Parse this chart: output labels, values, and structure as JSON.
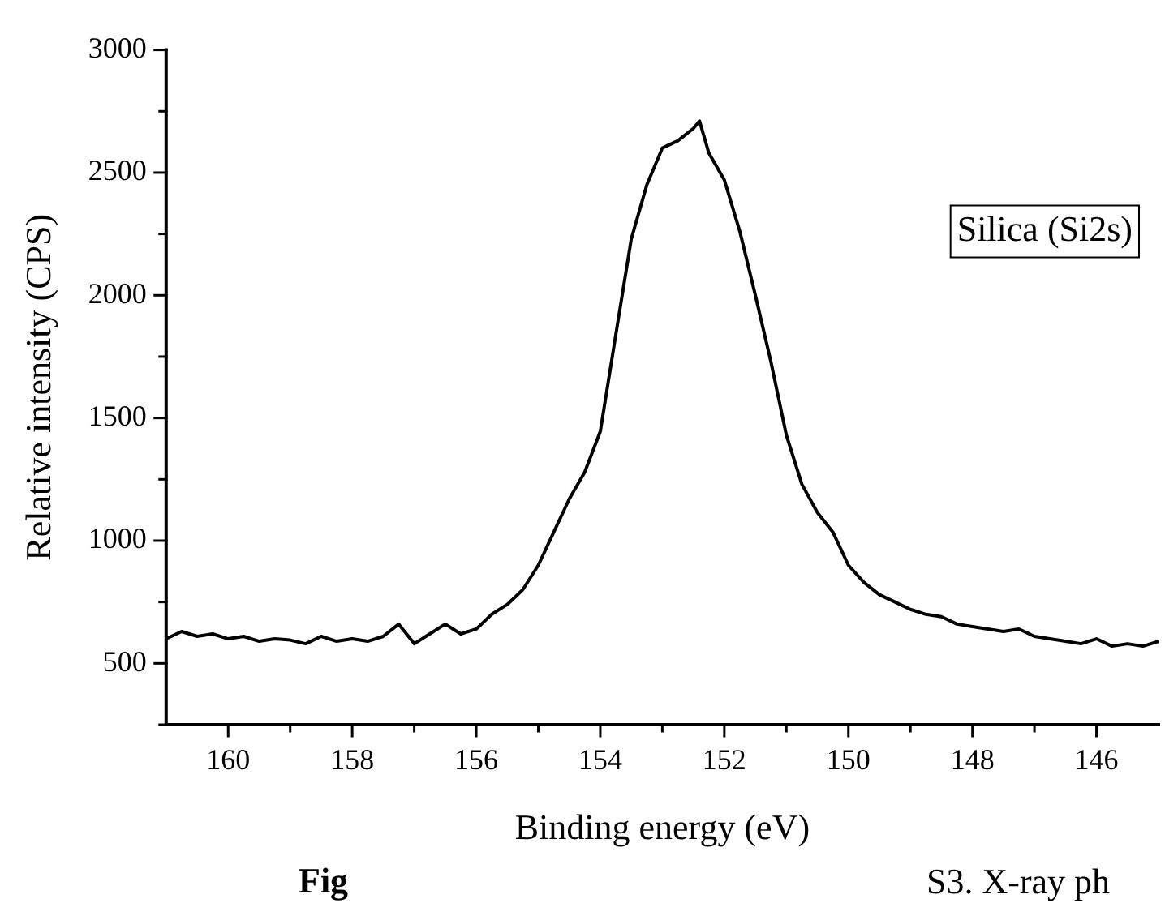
{
  "chart_data": {
    "type": "line",
    "xlabel": "Binding energy (eV)",
    "ylabel": "Relative intensity (CPS)",
    "annotations": [
      "Silica (Si2s)",
      "Fig",
      "S3. X-ray ph"
    ],
    "xlim": [
      161,
      145
    ],
    "xticks": [
      160,
      158,
      156,
      154,
      152,
      150,
      148,
      146
    ],
    "ylim": [
      250,
      3000
    ],
    "yticks": [
      500,
      1000,
      1500,
      2000,
      2500,
      3000
    ],
    "grid": false,
    "legend": false,
    "marker": "none",
    "line_style": "solid",
    "series": [
      {
        "color": "#000000",
        "x": [
          161,
          160.75,
          160.5,
          160.25,
          160,
          159.75,
          159.5,
          159.25,
          159,
          158.75,
          158.5,
          158.25,
          158,
          157.75,
          157.5,
          157.25,
          157,
          156.75,
          156.5,
          156.25,
          156,
          155.75,
          155.5,
          155.25,
          155,
          154.75,
          154.5,
          154.25,
          154,
          153.75,
          153.5,
          153.25,
          153,
          152.75,
          152.5,
          152.4,
          152.25,
          152,
          151.75,
          151.5,
          151.25,
          151,
          150.75,
          150.5,
          150.25,
          150,
          149.75,
          149.5,
          149.25,
          149,
          148.75,
          148.5,
          148.25,
          148,
          147.75,
          147.5,
          147.25,
          147,
          146.75,
          146.5,
          146.25,
          146,
          145.75,
          145.5,
          145.25,
          145
        ],
        "values": [
          600,
          630,
          610,
          620,
          600,
          610,
          590,
          600,
          595,
          580,
          610,
          590,
          600,
          590,
          610,
          660,
          580,
          620,
          660,
          620,
          640,
          700,
          740,
          800,
          900,
          1035,
          1170,
          1280,
          1445,
          1840,
          2230,
          2450,
          2600,
          2630,
          2680,
          2710,
          2580,
          2470,
          2260,
          2000,
          1730,
          1430,
          1230,
          1115,
          1035,
          900,
          830,
          780,
          750,
          720,
          700,
          690,
          660,
          650,
          640,
          630,
          640,
          610,
          600,
          590,
          580,
          600,
          570,
          580,
          570,
          590
        ]
      }
    ]
  }
}
